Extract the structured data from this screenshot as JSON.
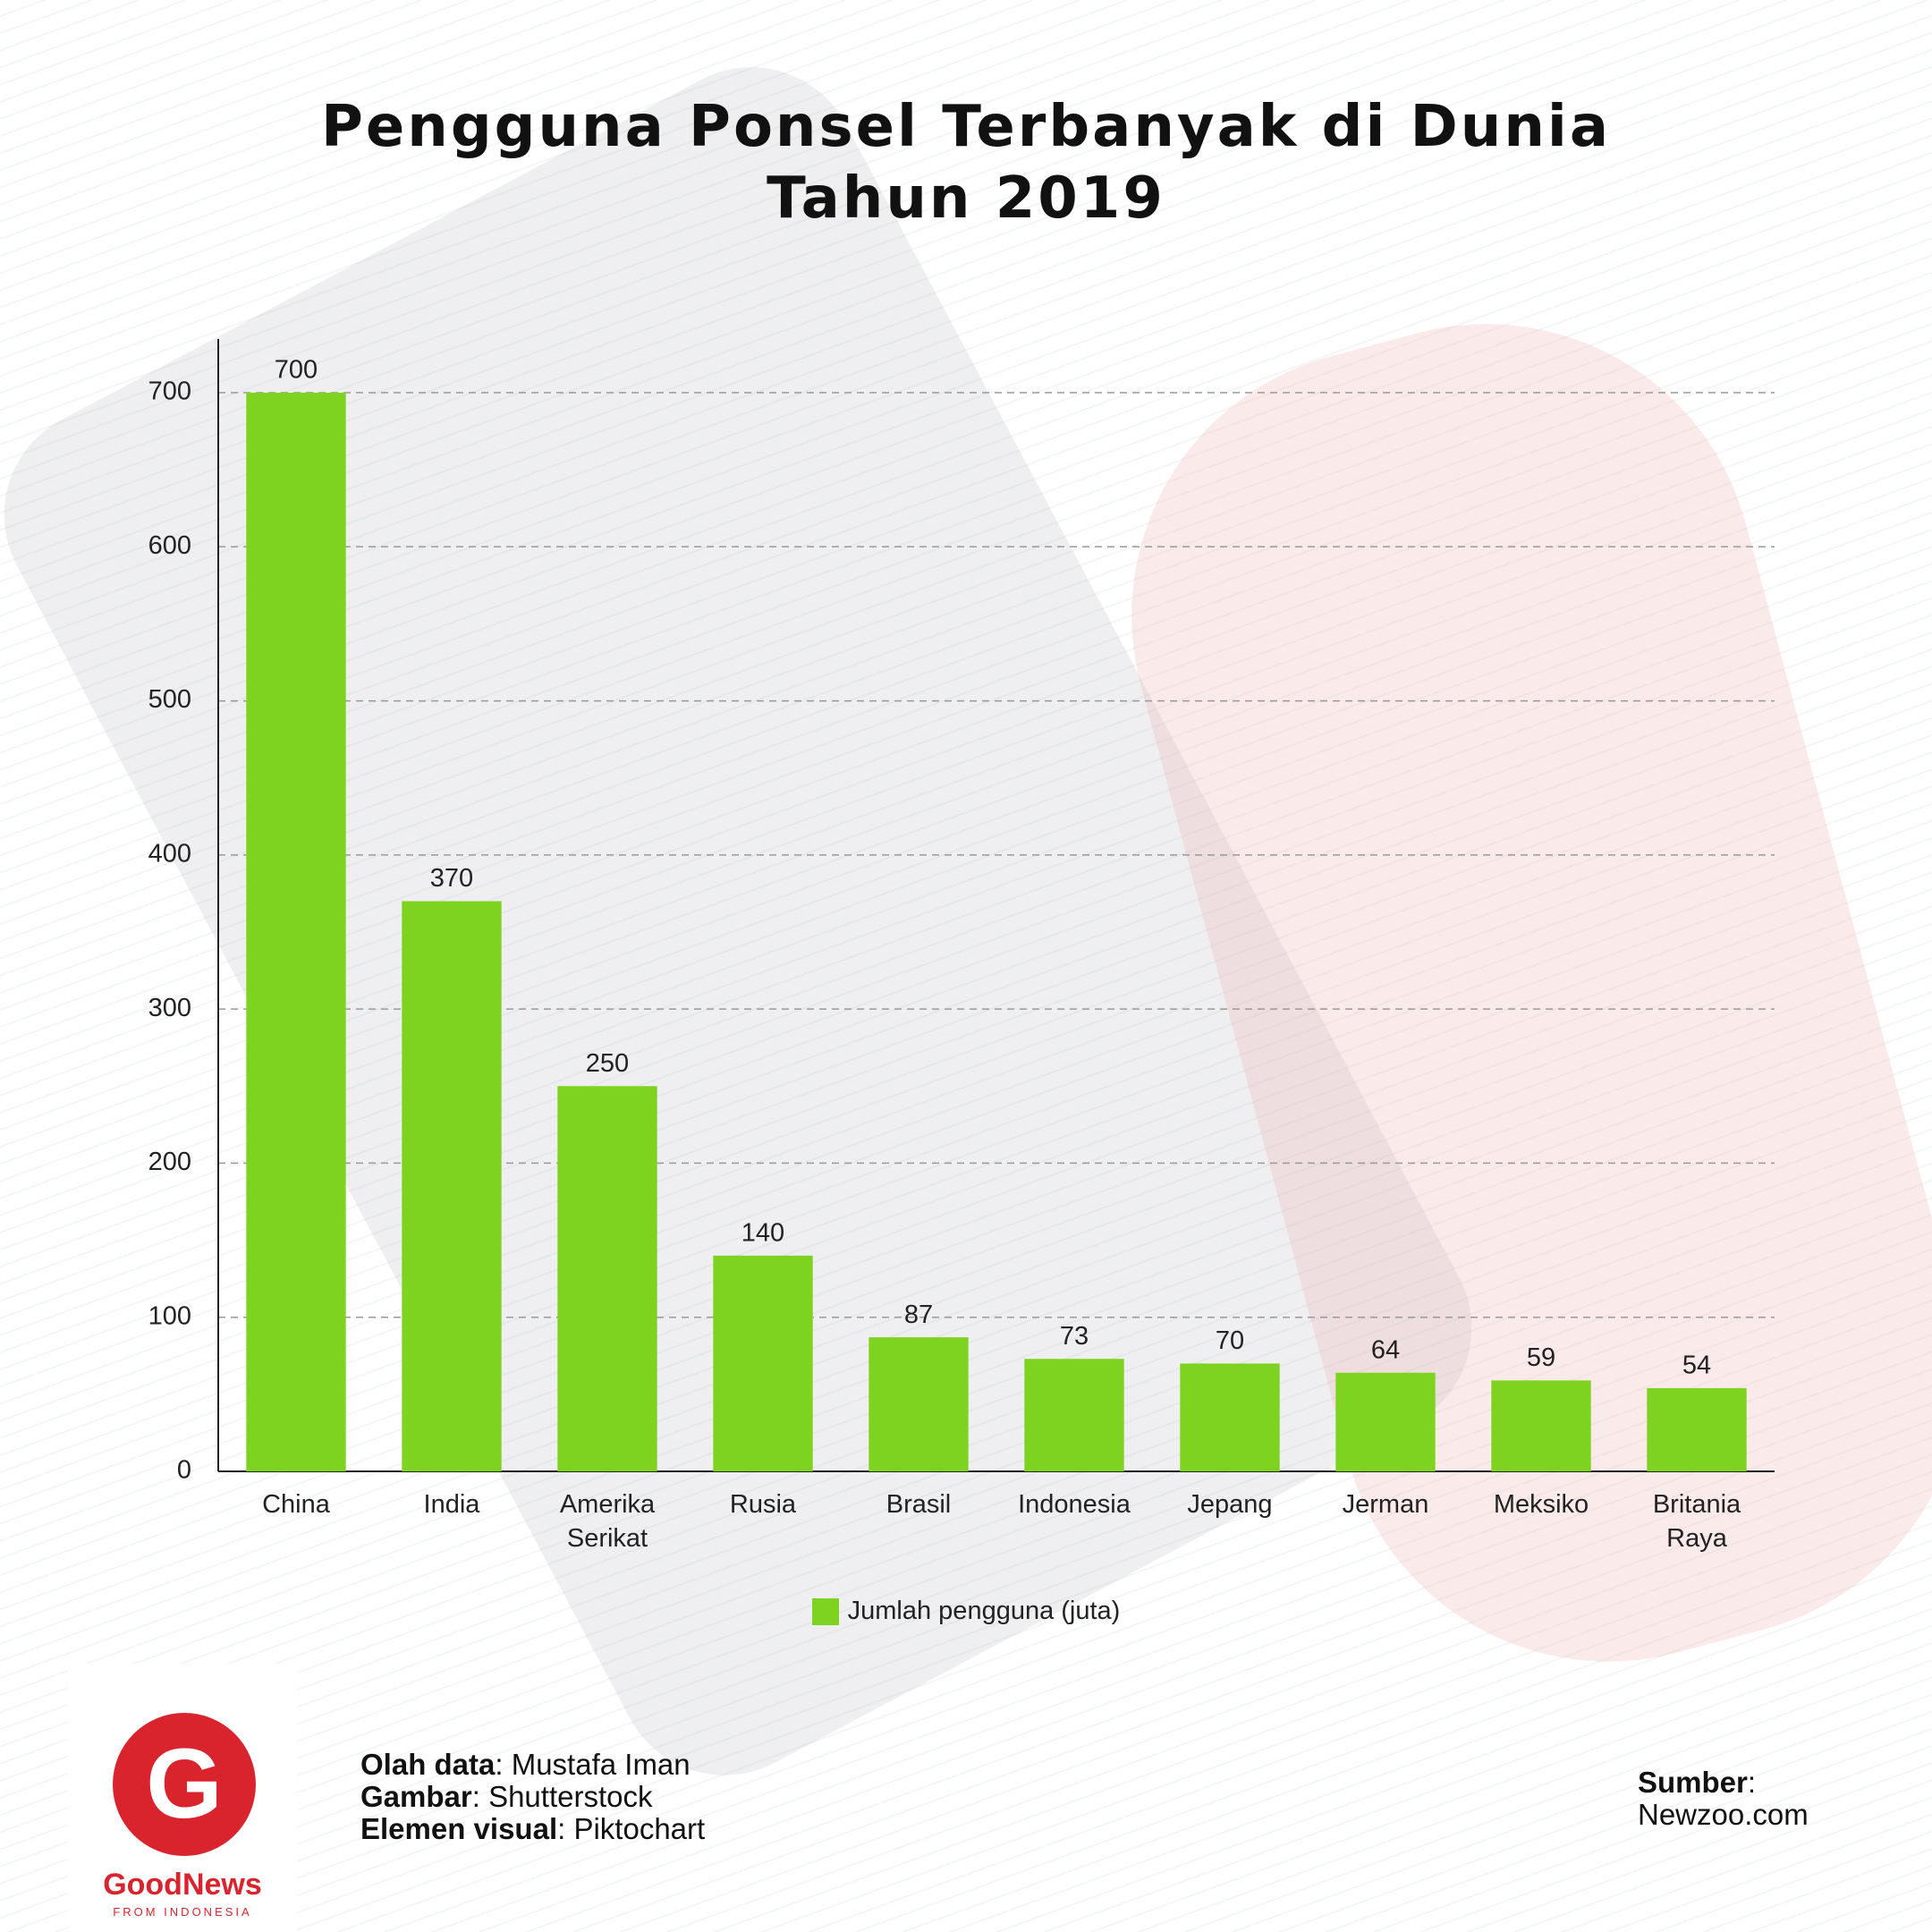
{
  "chart_data": {
    "type": "bar",
    "title": [
      "Pengguna Ponsel Terbanyak di Dunia",
      "Tahun 2019"
    ],
    "categories": [
      "China",
      "India",
      "Amerika Serikat",
      "Rusia",
      "Brasil",
      "Indonesia",
      "Jepang",
      "Jerman",
      "Meksiko",
      "Britania Raya"
    ],
    "series": [
      {
        "name": "Jumlah pengguna (juta)",
        "color": "#7ed321",
        "values": [
          700,
          370,
          250,
          140,
          87,
          73,
          70,
          64,
          59,
          54
        ]
      }
    ],
    "ylim": [
      0,
      700
    ],
    "yticks": [
      0,
      100,
      200,
      300,
      400,
      500,
      600,
      700
    ],
    "grid": true,
    "legend": "bottom"
  },
  "credits": [
    {
      "label": "Olah data",
      "value": "Mustafa Iman"
    },
    {
      "label": "Gambar",
      "value": "Shutterstock"
    },
    {
      "label": "Elemen visual",
      "value": "Piktochart"
    }
  ],
  "source": {
    "label": "Sumber",
    "value": "Newzoo.com"
  },
  "logo": {
    "name": "GoodNews",
    "tagline": "FROM INDONESIA"
  }
}
